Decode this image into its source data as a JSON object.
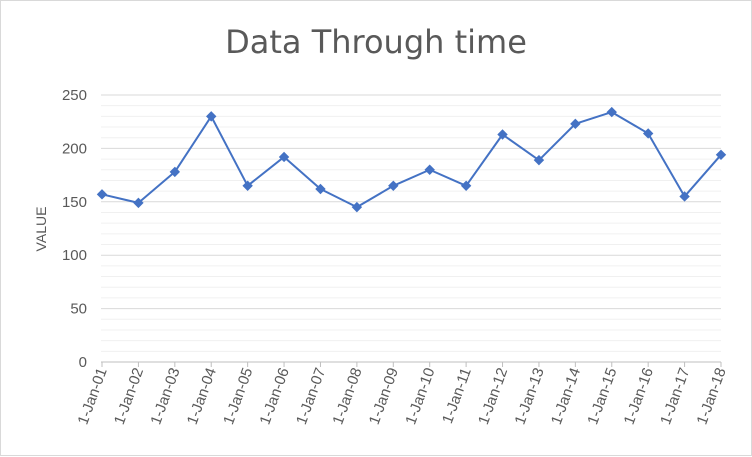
{
  "chart_data": {
    "type": "line",
    "title": "Data Through time",
    "xlabel": "",
    "ylabel": "VALUE",
    "ylim": [
      0,
      250
    ],
    "y_ticks": [
      0,
      50,
      100,
      150,
      200,
      250
    ],
    "grid": "major and minor horizontal",
    "legend": "none",
    "categories": [
      "1-Jan-01",
      "1-Jan-02",
      "1-Jan-03",
      "1-Jan-04",
      "1-Jan-05",
      "1-Jan-06",
      "1-Jan-07",
      "1-Jan-08",
      "1-Jan-09",
      "1-Jan-10",
      "1-Jan-11",
      "1-Jan-12",
      "1-Jan-13",
      "1-Jan-14",
      "1-Jan-15",
      "1-Jan-16",
      "1-Jan-17",
      "1-Jan-18"
    ],
    "series": [
      {
        "values": [
          157,
          149,
          178,
          230,
          165,
          192,
          162,
          145,
          165,
          180,
          165,
          213,
          189,
          223,
          234,
          214,
          155,
          194
        ],
        "color": "#4472c4",
        "marker": "diamond"
      }
    ]
  }
}
